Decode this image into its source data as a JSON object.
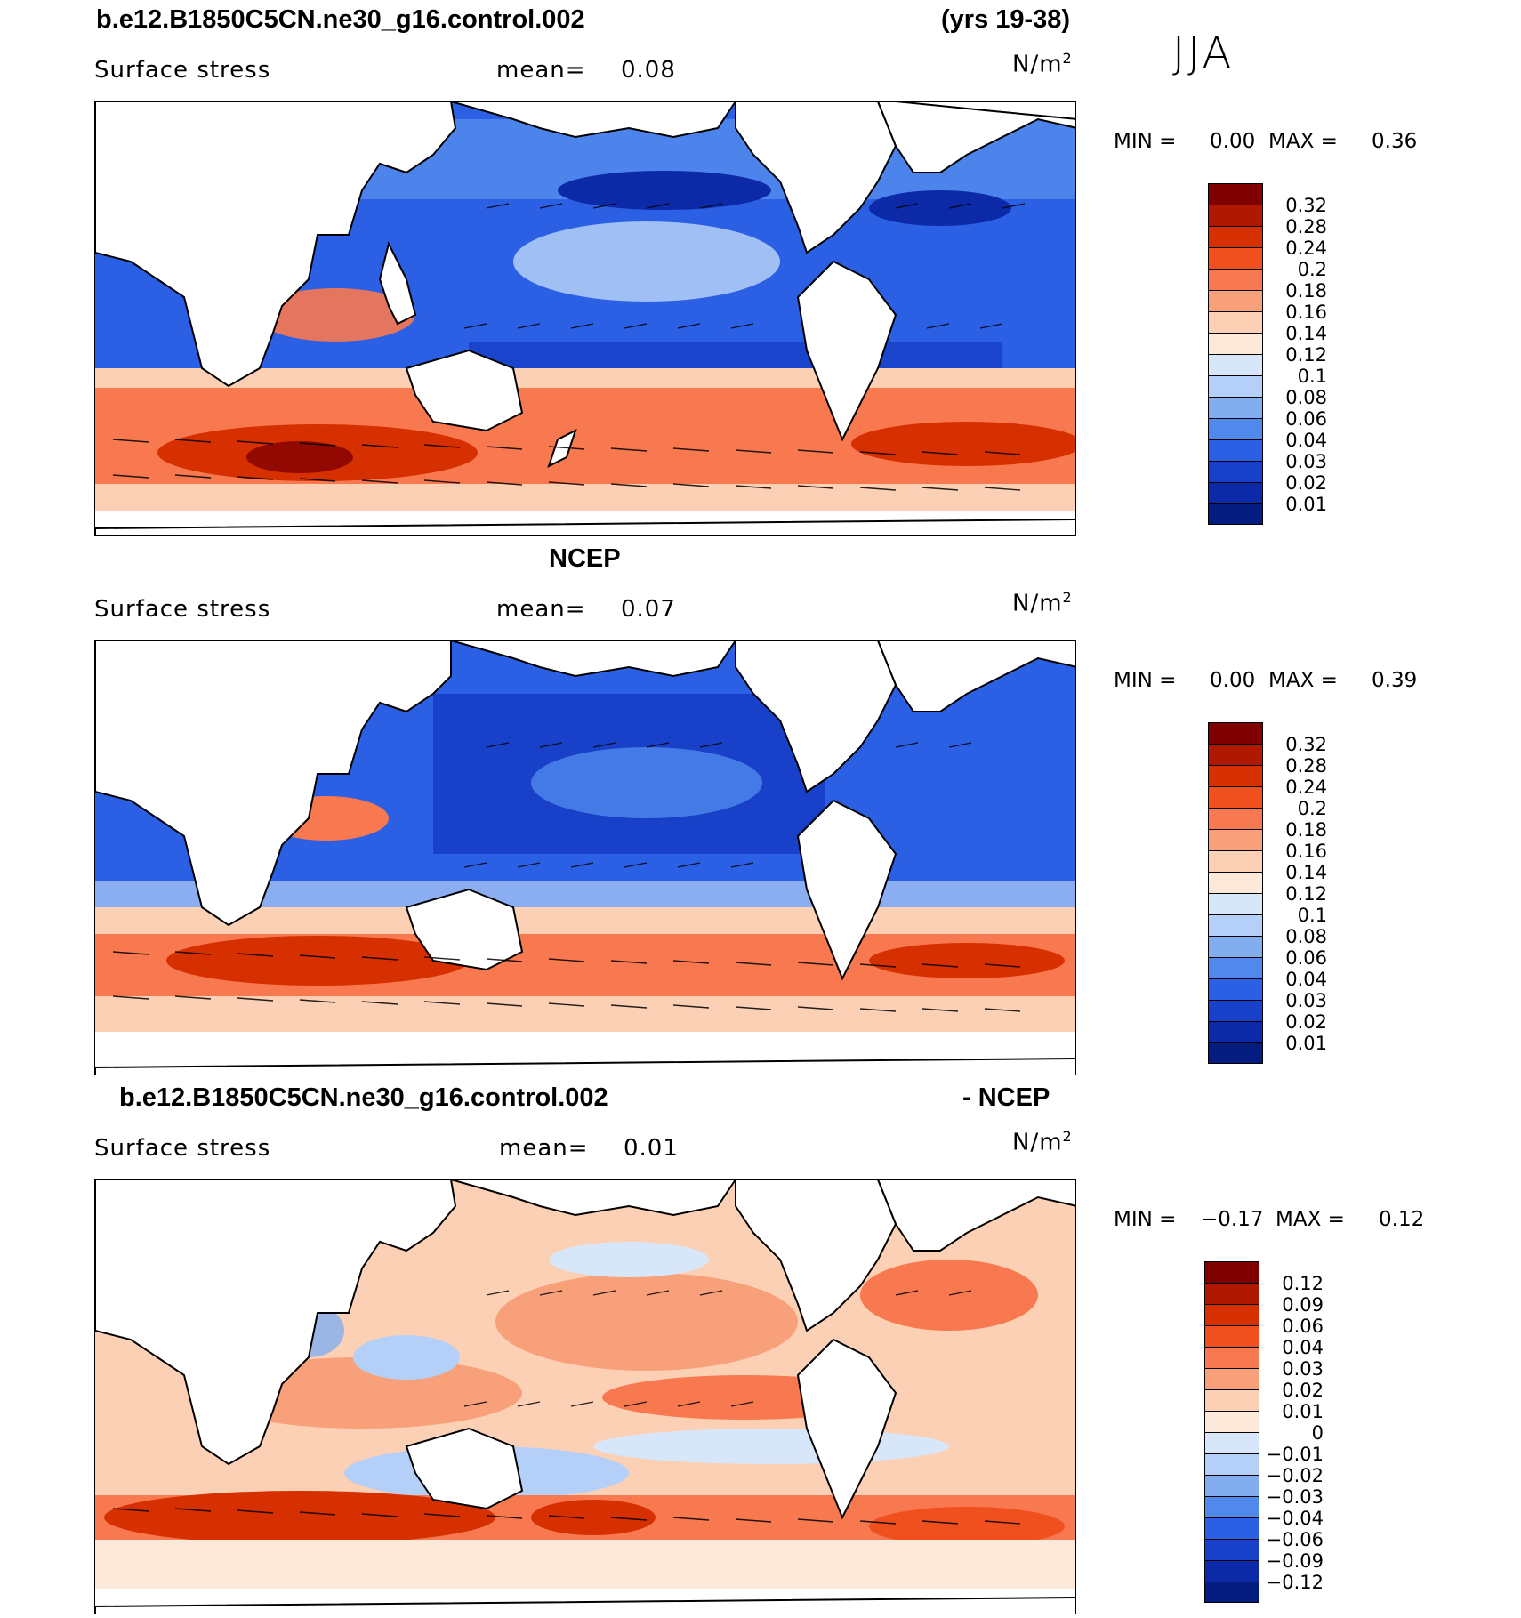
{
  "season": "JJA",
  "units": "N/m",
  "units_sup": "2",
  "panels": [
    {
      "title_left": "b.e12.B1850C5CN.ne30_g16.control.002",
      "title_right": "(yrs 19-38)",
      "var_label": "Surface stress",
      "mean_label": "mean=",
      "mean_value": "0.08",
      "min_label": "MIN =",
      "min_value": "0.00",
      "max_label": "MAX =",
      "max_value": "0.36",
      "colorbar_ticks": [
        "0.32",
        "0.28",
        "0.24",
        "0.2",
        "0.18",
        "0.16",
        "0.14",
        "0.12",
        "0.1",
        "0.08",
        "0.06",
        "0.04",
        "0.03",
        "0.02",
        "0.01"
      ]
    },
    {
      "title_left": "NCEP",
      "var_label": "Surface stress",
      "mean_label": "mean=",
      "mean_value": "0.07",
      "min_label": "MIN =",
      "min_value": "0.00",
      "max_label": "MAX =",
      "max_value": "0.39",
      "colorbar_ticks": [
        "0.32",
        "0.28",
        "0.24",
        "0.2",
        "0.18",
        "0.16",
        "0.14",
        "0.12",
        "0.1",
        "0.08",
        "0.06",
        "0.04",
        "0.03",
        "0.02",
        "0.01"
      ]
    },
    {
      "title_left": "b.e12.B1850C5CN.ne30_g16.control.002",
      "title_right": "- NCEP",
      "var_label": "Surface stress",
      "mean_label": "mean=",
      "mean_value": "0.01",
      "min_label": "MIN =",
      "min_value": "−0.17",
      "max_label": "MAX =",
      "max_value": "0.12",
      "colorbar_ticks": [
        "0.12",
        "0.09",
        "0.06",
        "0.04",
        "0.03",
        "0.02",
        "0.01",
        "0",
        "−0.01",
        "−0.02",
        "−0.03",
        "−0.04",
        "−0.06",
        "−0.09",
        "−0.12"
      ]
    }
  ],
  "colors": {
    "seq_scale": [
      "#7f0000",
      "#b01800",
      "#d73000",
      "#f0501e",
      "#f87850",
      "#f8a07a",
      "#fcd0b4",
      "#fde9da",
      "#d7e6f8",
      "#b4d0f8",
      "#82aef0",
      "#5088ec",
      "#2c60e4",
      "#1840c8",
      "#0c2aa8",
      "#041c80"
    ],
    "diff_scale": [
      "#7f0000",
      "#b01800",
      "#d73000",
      "#f0501e",
      "#f87850",
      "#f8a07a",
      "#fcd0b4",
      "#fde9da",
      "#d7e6f8",
      "#b4d0f8",
      "#82aef0",
      "#5088ec",
      "#2c60e4",
      "#1840c8",
      "#0c2aa8",
      "#041c80"
    ],
    "land": "#ffffff",
    "coast": "#000000"
  }
}
